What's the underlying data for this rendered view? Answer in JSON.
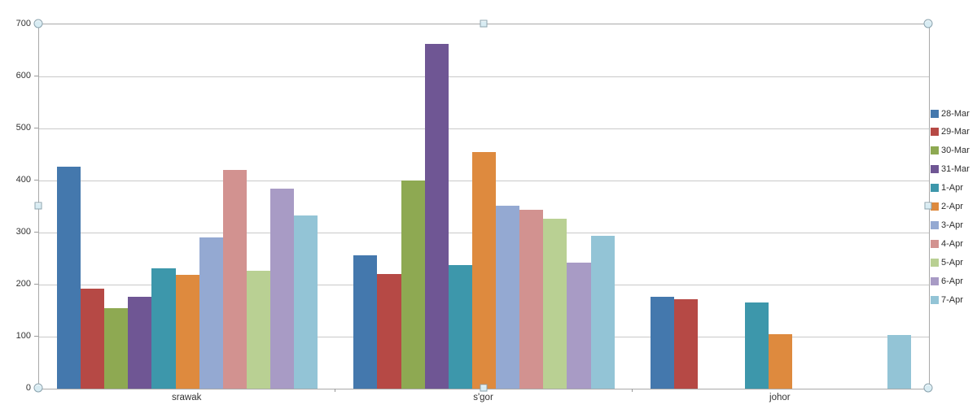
{
  "chart_data": {
    "type": "bar",
    "title": "",
    "xlabel": "",
    "ylabel": "",
    "categories": [
      "srawak",
      "s'gor",
      "johor"
    ],
    "series": [
      {
        "name": "28-Mar",
        "color": "#4478ad",
        "values": [
          427,
          256,
          177
        ]
      },
      {
        "name": "29-Mar",
        "color": "#b64945",
        "values": [
          192,
          220,
          172
        ]
      },
      {
        "name": "30-Mar",
        "color": "#8ea952",
        "values": [
          155,
          400,
          0
        ]
      },
      {
        "name": "31-Mar",
        "color": "#6f5694",
        "values": [
          177,
          662,
          0
        ]
      },
      {
        "name": "1-Apr",
        "color": "#3d97ab",
        "values": [
          232,
          238,
          165
        ]
      },
      {
        "name": "2-Apr",
        "color": "#de8a3e",
        "values": [
          218,
          455,
          105
        ]
      },
      {
        "name": "3-Apr",
        "color": "#94a9d2",
        "values": [
          290,
          352,
          0
        ]
      },
      {
        "name": "4-Apr",
        "color": "#d29290",
        "values": [
          420,
          343,
          0
        ]
      },
      {
        "name": "5-Apr",
        "color": "#b9d093",
        "values": [
          227,
          327,
          0
        ]
      },
      {
        "name": "6-Apr",
        "color": "#a89bc5",
        "values": [
          385,
          242,
          0
        ]
      },
      {
        "name": "7-Apr",
        "color": "#93c4d6",
        "values": [
          333,
          294,
          103
        ]
      }
    ],
    "ylim": [
      0,
      700
    ],
    "yticks": [
      0,
      100,
      200,
      300,
      400,
      500,
      600,
      700
    ],
    "grid": true,
    "legend_position": "right",
    "gap_width_percent": 150
  },
  "styles": {
    "gridline_color": "#c9c9c9",
    "axis_border_color": "#a9a9a9",
    "tick_color": "#9a9a9a",
    "label_color": "#333333",
    "selection_handle_fill": "#d8ecf3",
    "selection_handle_border": "#8ba3ae"
  },
  "selection": {
    "target": "plot-area",
    "handles": [
      {
        "pos": "top-left",
        "shape": "circle"
      },
      {
        "pos": "top-middle",
        "shape": "square"
      },
      {
        "pos": "top-right",
        "shape": "circle"
      },
      {
        "pos": "middle-left",
        "shape": "square"
      },
      {
        "pos": "middle-right",
        "shape": "square"
      },
      {
        "pos": "bottom-left",
        "shape": "circle"
      },
      {
        "pos": "bottom-middle",
        "shape": "square"
      },
      {
        "pos": "bottom-right",
        "shape": "circle"
      }
    ]
  }
}
